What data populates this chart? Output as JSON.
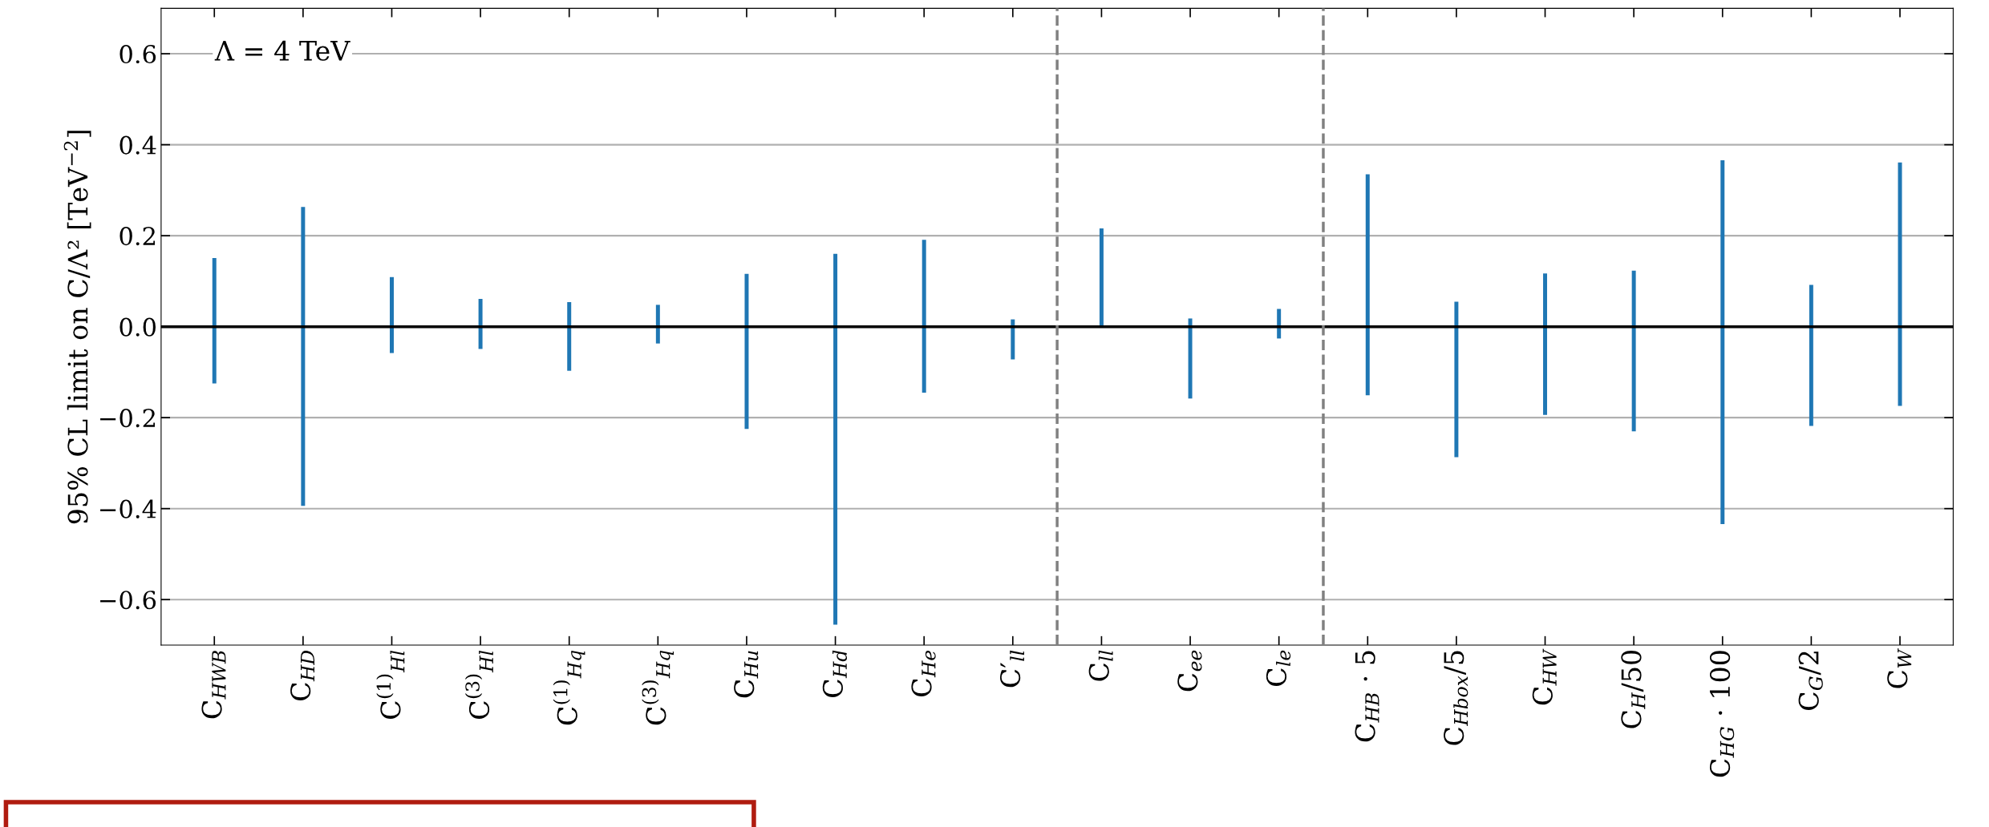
{
  "chart_data": {
    "type": "bar",
    "ylabel": "95% CL limit on C/Λ² [TeV$^{−2}$]",
    "categories": [
      "C$_{HWB}$",
      "C$_{HD}$",
      "C$^{(1)}$$_{Hl}$",
      "C$^{(3)}$$_{Hl}$",
      "C$^{(1)}$$_{Hq}$",
      "C$^{(3)}$$_{Hq}$",
      "C$_{Hu}$",
      "C$_{Hd}$",
      "C$_{He}$",
      "C′$_{ll}$",
      "C$_{ll}$",
      "C$_{ee}$",
      "C$_{le}$",
      "C$_{HB}$ · 5",
      "C$_{Hbox}$/5",
      "C$_{HW}$",
      "C$_{H}$/50",
      "C$_{HG}$ · 100",
      "C$_{G}$/2",
      "C$_{W}$"
    ],
    "base": [
      -0.125,
      -0.394,
      -0.058,
      -0.049,
      -0.097,
      -0.037,
      -0.225,
      -0.655,
      -0.145,
      -0.072,
      0.0,
      -0.158,
      -0.026,
      -0.151,
      -0.287,
      -0.194,
      -0.23,
      -0.434,
      -0.218,
      -0.174
    ],
    "values": [
      0.276,
      0.657,
      0.167,
      0.11,
      0.151,
      0.085,
      0.341,
      0.815,
      0.336,
      0.088,
      0.216,
      0.176,
      0.065,
      0.486,
      0.342,
      0.311,
      0.353,
      0.8,
      0.31,
      0.535
    ],
    "color": "#1f77b4",
    "ylim": [
      -0.7,
      0.7
    ],
    "yticks": [
      {
        "value": -0.6,
        "label": "−0.6"
      },
      {
        "value": -0.4,
        "label": "−0.4"
      },
      {
        "value": -0.2,
        "label": "−0.2"
      },
      {
        "value": 0.0,
        "label": "0.0"
      },
      {
        "value": 0.2,
        "label": "0.2"
      },
      {
        "value": 0.4,
        "label": "0.4"
      },
      {
        "value": 0.6,
        "label": "0.6"
      }
    ],
    "grid": "y",
    "ref_lines": [
      {
        "axis": "y",
        "value": 0,
        "color": "#000000",
        "line_style": "solid"
      }
    ],
    "annotations": [
      "Λ = 4 TeV"
    ]
  }
}
